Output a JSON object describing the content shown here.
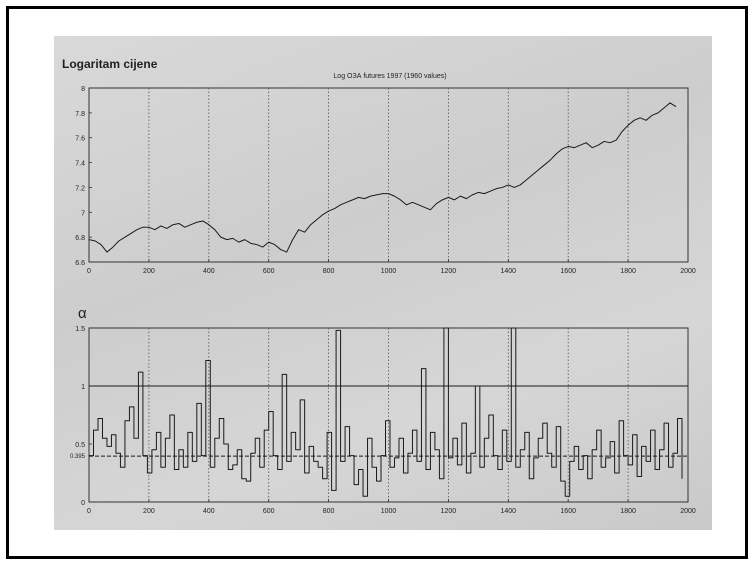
{
  "chart_data": [
    {
      "type": "line",
      "title": "Logaritam cijene",
      "subtitle": "Log ОЗА futures 1997 (1960 values)",
      "xlabel": "",
      "ylabel": "",
      "xlim": [
        0,
        2000
      ],
      "ylim": [
        6.6,
        8.0
      ],
      "x_ticks": [
        "0",
        "200",
        "400",
        "600",
        "800",
        "1000",
        "1200",
        "1400",
        "1600",
        "1800",
        "2000"
      ],
      "y_ticks": [
        "6.6",
        "6.8",
        "7",
        "7.2",
        "7.4",
        "7.6",
        "7.8",
        "8"
      ],
      "grid": "vertical dotted at x ticks",
      "series": [
        {
          "x": [
            0,
            20,
            40,
            60,
            80,
            100,
            120,
            140,
            160,
            180,
            200,
            220,
            240,
            260,
            280,
            300,
            320,
            340,
            360,
            380,
            400,
            420,
            440,
            460,
            480,
            500,
            520,
            540,
            560,
            580,
            600,
            620,
            640,
            660,
            680,
            700,
            720,
            740,
            760,
            780,
            800,
            820,
            840,
            860,
            880,
            900,
            920,
            940,
            960,
            980,
            1000,
            1020,
            1040,
            1060,
            1080,
            1100,
            1120,
            1140,
            1160,
            1180,
            1200,
            1220,
            1240,
            1260,
            1280,
            1300,
            1320,
            1340,
            1360,
            1380,
            1400,
            1420,
            1440,
            1460,
            1480,
            1500,
            1520,
            1540,
            1560,
            1580,
            1600,
            1620,
            1640,
            1660,
            1680,
            1700,
            1720,
            1740,
            1760,
            1780,
            1800,
            1820,
            1840,
            1860,
            1880,
            1900,
            1920,
            1940,
            1960
          ],
          "y": [
            6.78,
            6.77,
            6.74,
            6.68,
            6.72,
            6.77,
            6.8,
            6.83,
            6.86,
            6.88,
            6.88,
            6.86,
            6.89,
            6.87,
            6.9,
            6.91,
            6.88,
            6.9,
            6.92,
            6.93,
            6.9,
            6.86,
            6.8,
            6.78,
            6.79,
            6.76,
            6.78,
            6.75,
            6.74,
            6.72,
            6.76,
            6.74,
            6.7,
            6.68,
            6.78,
            6.86,
            6.84,
            6.9,
            6.94,
            6.98,
            7.01,
            7.03,
            7.06,
            7.08,
            7.1,
            7.12,
            7.11,
            7.13,
            7.14,
            7.15,
            7.15,
            7.13,
            7.1,
            7.06,
            7.08,
            7.06,
            7.04,
            7.02,
            7.07,
            7.1,
            7.12,
            7.1,
            7.13,
            7.11,
            7.14,
            7.16,
            7.15,
            7.17,
            7.19,
            7.2,
            7.22,
            7.2,
            7.22,
            7.26,
            7.3,
            7.34,
            7.38,
            7.42,
            7.47,
            7.51,
            7.53,
            7.52,
            7.54,
            7.56,
            7.52,
            7.54,
            7.57,
            7.56,
            7.58,
            7.65,
            7.7,
            7.74,
            7.76,
            7.74,
            7.78,
            7.8,
            7.84,
            7.88,
            7.85
          ]
        }
      ]
    },
    {
      "type": "line",
      "title": "α",
      "xlabel": "",
      "ylabel": "",
      "xlim": [
        0,
        2000
      ],
      "ylim": [
        0,
        1.5
      ],
      "x_ticks": [
        "0",
        "200",
        "400",
        "600",
        "800",
        "1000",
        "1200",
        "1400",
        "1600",
        "1800",
        "2000"
      ],
      "y_ticks": [
        "0",
        "0.5",
        "1",
        "1.5"
      ],
      "y_tick_extra": "0.395",
      "grid": "vertical dotted at x ticks",
      "reference_lines": [
        1,
        0.395
      ],
      "series": [
        {
          "x": [
            0,
            15,
            30,
            45,
            60,
            75,
            90,
            105,
            120,
            135,
            150,
            165,
            180,
            195,
            210,
            225,
            240,
            255,
            270,
            285,
            300,
            315,
            330,
            345,
            360,
            375,
            390,
            405,
            420,
            435,
            450,
            465,
            480,
            495,
            510,
            525,
            540,
            555,
            570,
            585,
            600,
            615,
            630,
            645,
            660,
            675,
            690,
            705,
            720,
            735,
            750,
            765,
            780,
            795,
            810,
            825,
            840,
            855,
            870,
            885,
            900,
            915,
            930,
            945,
            960,
            975,
            990,
            1005,
            1020,
            1035,
            1050,
            1065,
            1080,
            1095,
            1110,
            1125,
            1140,
            1155,
            1170,
            1185,
            1200,
            1215,
            1230,
            1245,
            1260,
            1275,
            1290,
            1305,
            1320,
            1335,
            1350,
            1365,
            1380,
            1395,
            1410,
            1425,
            1440,
            1455,
            1470,
            1485,
            1500,
            1515,
            1530,
            1545,
            1560,
            1575,
            1590,
            1605,
            1620,
            1635,
            1650,
            1665,
            1680,
            1695,
            1710,
            1725,
            1740,
            1755,
            1770,
            1785,
            1800,
            1815,
            1830,
            1845,
            1860,
            1875,
            1890,
            1905,
            1920,
            1935,
            1950,
            1965,
            1980
          ],
          "y": [
            0.4,
            0.62,
            0.72,
            0.55,
            0.48,
            0.58,
            0.42,
            0.3,
            0.7,
            0.82,
            0.55,
            1.12,
            0.4,
            0.25,
            0.45,
            0.6,
            0.3,
            0.55,
            0.75,
            0.28,
            0.45,
            0.3,
            0.6,
            0.35,
            0.85,
            0.4,
            1.22,
            0.3,
            0.55,
            0.72,
            0.5,
            0.28,
            0.32,
            0.45,
            0.2,
            0.18,
            0.42,
            0.55,
            0.3,
            0.62,
            0.78,
            0.4,
            0.28,
            1.1,
            0.35,
            0.6,
            0.45,
            0.88,
            0.25,
            0.48,
            0.35,
            0.3,
            0.2,
            0.6,
            0.1,
            1.48,
            0.35,
            0.65,
            0.4,
            0.15,
            0.28,
            0.05,
            0.55,
            0.3,
            0.18,
            0.4,
            0.7,
            0.3,
            0.38,
            0.55,
            0.25,
            0.42,
            0.62,
            0.35,
            1.15,
            0.28,
            0.6,
            0.45,
            0.2,
            1.5,
            0.38,
            0.55,
            0.32,
            0.68,
            0.25,
            0.42,
            1.0,
            0.3,
            0.55,
            0.75,
            0.4,
            0.28,
            0.62,
            0.35,
            1.5,
            0.3,
            0.45,
            0.6,
            0.2,
            0.38,
            0.55,
            0.68,
            0.42,
            0.3,
            0.65,
            0.18,
            0.05,
            0.35,
            0.48,
            0.28,
            0.4,
            0.2,
            0.45,
            0.62,
            0.3,
            0.38,
            0.52,
            0.25,
            0.7,
            0.4,
            0.32,
            0.58,
            0.22,
            0.48,
            0.35,
            0.62,
            0.28,
            0.45,
            0.68,
            0.3,
            0.42,
            0.72,
            0.2
          ]
        }
      ]
    }
  ],
  "colors": {
    "line": "#1a1a1a",
    "axis": "#333333",
    "grid": "#555555",
    "background": "#d3d3d3",
    "frame": "#000000"
  }
}
